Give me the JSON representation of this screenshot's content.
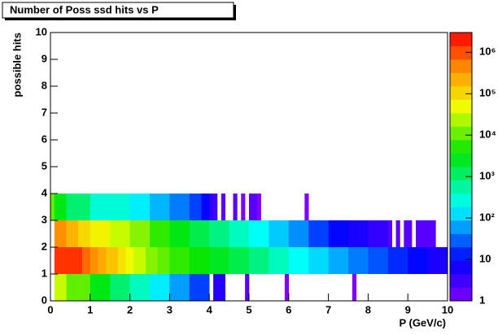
{
  "chart_data": {
    "type": "heatmap",
    "title": "Number of Poss ssd hits vs P",
    "xlabel": "P (GeV/c)",
    "ylabel": "possible hits",
    "xlim": [
      0,
      10
    ],
    "ylim": [
      0,
      10
    ],
    "xticks": [
      0,
      1,
      2,
      3,
      4,
      5,
      6,
      7,
      8,
      9,
      10
    ],
    "yticks": [
      0,
      1,
      2,
      3,
      4,
      5,
      6,
      7,
      8,
      9,
      10
    ],
    "log_z": true,
    "zlim": [
      1,
      3000000
    ],
    "zticks": [
      1,
      10,
      {
        "value": 100,
        "label": "10²"
      },
      {
        "value": 1000,
        "label": "10³"
      },
      {
        "value": 10000,
        "label": "10⁴"
      },
      {
        "value": 100000,
        "label": "10⁵"
      },
      {
        "value": 1000000,
        "label": "10⁶"
      }
    ],
    "x_bins": [
      0,
      0.1,
      0.2,
      0.3,
      0.4,
      0.5,
      0.6,
      0.7,
      0.8,
      0.9,
      1,
      1.1,
      1.2,
      1.3,
      1.4,
      1.5,
      1.6,
      1.7,
      1.8,
      1.9,
      2,
      2.1,
      2.2,
      2.3,
      2.4,
      2.5,
      2.6,
      2.7,
      2.8,
      2.9,
      3,
      3.1,
      3.2,
      3.3,
      3.4,
      3.5,
      3.6,
      3.7,
      3.8,
      3.9,
      4,
      4.1,
      4.2,
      4.3,
      4.4,
      4.5,
      4.6,
      4.7,
      4.8,
      4.9,
      5,
      5.1,
      5.2,
      5.3,
      5.4,
      5.5,
      5.6,
      5.7,
      5.8,
      5.9,
      6,
      6.1,
      6.2,
      6.3,
      6.4,
      6.5,
      6.6,
      6.7,
      6.8,
      6.9,
      7,
      7.1,
      7.2,
      7.3,
      7.4,
      7.5,
      7.6,
      7.7,
      7.8,
      7.9,
      8,
      8.1,
      8.2,
      8.3,
      8.4,
      8.5,
      8.6,
      8.7,
      8.8,
      8.9,
      9,
      9.1,
      9.2,
      9.3,
      9.4,
      9.5,
      9.6,
      9.7,
      9.8,
      9.9,
      10
    ],
    "y_bins": [
      0,
      1,
      2,
      3,
      4
    ],
    "z": [
      [
        null,
        30000,
        30000,
        30000,
        10000,
        10000,
        10000,
        10000,
        10000,
        10000,
        3000,
        3000,
        3000,
        3000,
        3000,
        1000,
        1000,
        1000,
        1000,
        1000,
        400,
        400,
        400,
        400,
        400,
        150,
        150,
        150,
        150,
        150,
        60,
        60,
        60,
        60,
        60,
        20,
        20,
        20,
        20,
        20,
        null,
        5,
        5,
        5,
        null,
        null,
        null,
        null,
        null,
        2,
        null,
        null,
        null,
        null,
        null,
        null,
        null,
        null,
        null,
        1,
        null,
        null,
        null,
        null,
        null,
        null,
        null,
        null,
        null,
        null,
        null,
        null,
        null,
        null,
        null,
        null,
        1,
        null,
        null,
        null,
        null,
        null,
        null,
        null,
        null,
        null,
        null,
        null,
        null,
        null,
        null,
        null,
        null,
        null,
        null,
        null,
        null,
        null,
        null,
        null
      ],
      [
        null,
        1500000,
        1500000,
        1500000,
        1500000,
        1500000,
        1500000,
        1500000,
        700000,
        700000,
        400000,
        400000,
        250000,
        250000,
        150000,
        150000,
        150000,
        80000,
        80000,
        50000,
        50000,
        30000,
        30000,
        30000,
        15000,
        15000,
        15000,
        10000,
        10000,
        10000,
        6000,
        6000,
        6000,
        6000,
        6000,
        4000,
        4000,
        4000,
        4000,
        4000,
        2500,
        2500,
        2500,
        2500,
        2500,
        1500,
        1500,
        1500,
        1500,
        1500,
        800,
        800,
        800,
        800,
        800,
        400,
        400,
        400,
        400,
        400,
        200,
        200,
        200,
        200,
        200,
        120,
        120,
        120,
        120,
        120,
        70,
        70,
        70,
        70,
        70,
        40,
        40,
        40,
        40,
        40,
        25,
        25,
        25,
        25,
        25,
        15,
        15,
        15,
        15,
        15,
        10,
        10,
        10,
        10,
        10,
        6,
        6,
        6,
        6,
        6
      ],
      [
        null,
        400000,
        400000,
        400000,
        200000,
        200000,
        200000,
        100000,
        100000,
        100000,
        60000,
        60000,
        60000,
        60000,
        60000,
        30000,
        30000,
        30000,
        30000,
        30000,
        15000,
        15000,
        15000,
        15000,
        15000,
        6000,
        6000,
        6000,
        6000,
        6000,
        3000,
        3000,
        3000,
        3000,
        3000,
        1500,
        1500,
        1500,
        1500,
        1500,
        800,
        800,
        800,
        800,
        800,
        400,
        400,
        400,
        400,
        400,
        200,
        200,
        200,
        200,
        200,
        100,
        100,
        100,
        100,
        100,
        50,
        50,
        50,
        50,
        50,
        20,
        20,
        20,
        20,
        20,
        10,
        10,
        10,
        10,
        10,
        6,
        6,
        6,
        6,
        6,
        4,
        4,
        4,
        4,
        4,
        2,
        null,
        2,
        null,
        2,
        2,
        null,
        2,
        2,
        2,
        2,
        2,
        null,
        null,
        null
      ],
      [
        10000,
        3000,
        3000,
        3000,
        1000,
        1000,
        1000,
        1000,
        1000,
        1000,
        300,
        300,
        300,
        300,
        300,
        300,
        300,
        300,
        300,
        300,
        150,
        150,
        150,
        150,
        150,
        80,
        80,
        80,
        80,
        80,
        40,
        40,
        40,
        40,
        40,
        20,
        20,
        20,
        10,
        10,
        4,
        3,
        null,
        2,
        null,
        null,
        2,
        null,
        1,
        null,
        2,
        2,
        1,
        null,
        null,
        null,
        null,
        null,
        null,
        null,
        null,
        null,
        null,
        null,
        1,
        null,
        null,
        null,
        null,
        null,
        null,
        null,
        null,
        null,
        null,
        null,
        null,
        null,
        null,
        null,
        null,
        null,
        null,
        null,
        null,
        null,
        null,
        null,
        null,
        null,
        null,
        null,
        null,
        null,
        null,
        null,
        null,
        null,
        null,
        null
      ]
    ]
  }
}
